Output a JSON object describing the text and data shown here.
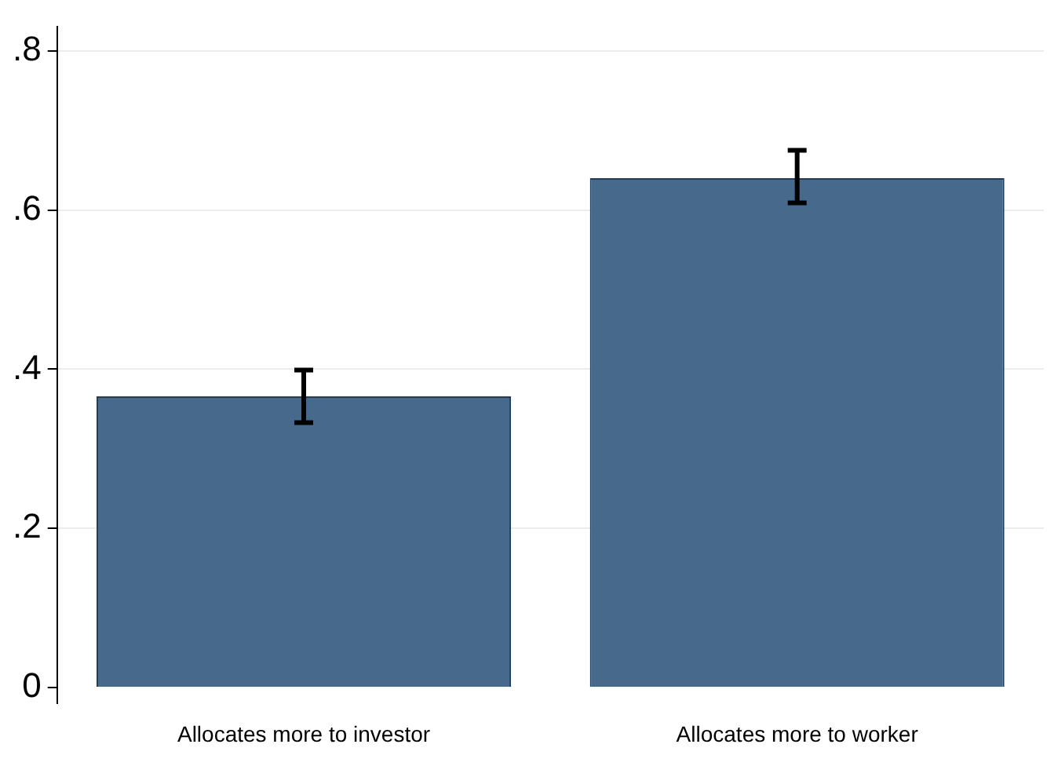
{
  "chart_data": {
    "type": "bar",
    "categories": [
      "Allocates more to investor",
      "Allocates more to worker"
    ],
    "values": [
      0.366,
      0.64
    ],
    "errors": [
      [
        0.333,
        0.399
      ],
      [
        0.609,
        0.675
      ]
    ],
    "color": "#476a8c",
    "ylim": [
      -0.02,
      0.83
    ],
    "yticks": [
      0,
      {
        "value": 0.2,
        "label": ".2"
      },
      {
        "value": 0.4,
        "label": ".4"
      },
      {
        "value": 0.6,
        "label": ".6"
      },
      {
        "value": 0.8,
        "label": ".8"
      }
    ],
    "grid": "y",
    "legend": false
  }
}
